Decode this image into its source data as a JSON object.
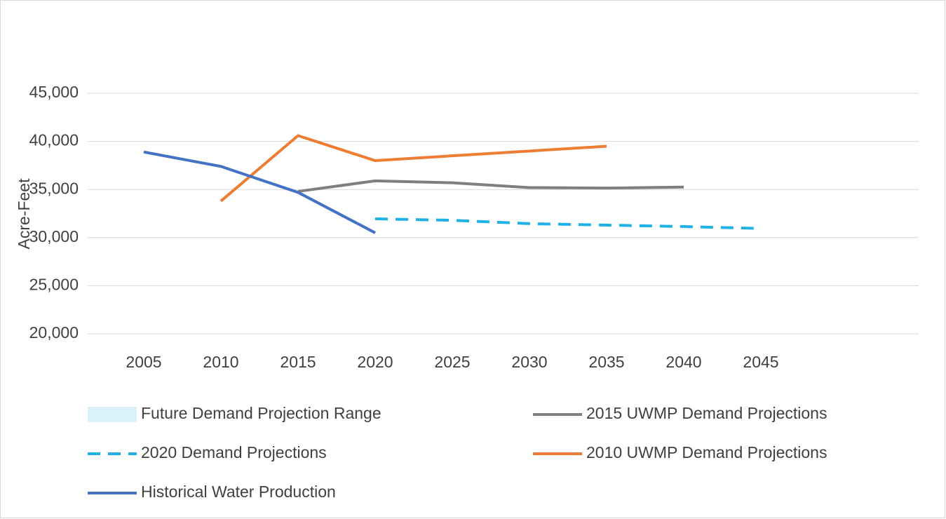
{
  "chart_data": {
    "type": "line",
    "y_label": "Acre-Feet",
    "categories": [
      "2005",
      "2010",
      "2015",
      "2020",
      "2025",
      "2030",
      "2035",
      "2040",
      "2045"
    ],
    "series": [
      {
        "name": "Future Demand Projection Range",
        "color": "#daf1fa",
        "style": "area",
        "values": [
          null,
          null,
          null,
          null,
          null,
          null,
          null,
          null,
          null
        ]
      },
      {
        "name": "2015 UWMP Demand Projections",
        "color": "#7f7f7f",
        "style": "solid",
        "values": [
          null,
          null,
          34800,
          35900,
          35700,
          35200,
          35150,
          35250,
          null
        ]
      },
      {
        "name": "2020 Demand Projections",
        "color": "#1fb1e6",
        "style": "dashed",
        "values": [
          null,
          null,
          null,
          31950,
          31800,
          31450,
          31300,
          31150,
          30950
        ]
      },
      {
        "name": "2010 UWMP Demand Projections",
        "color": "#ed7d31",
        "style": "solid",
        "values": [
          null,
          33800,
          40600,
          38000,
          38500,
          39000,
          39500,
          null,
          null
        ]
      },
      {
        "name": "Historical Water Production",
        "color": "#4472c4",
        "style": "solid",
        "values": [
          38900,
          37400,
          34700,
          30500,
          null,
          null,
          null,
          null,
          null
        ]
      }
    ],
    "ylim": [
      20000,
      45000
    ],
    "yticks": [
      {
        "value": 20000,
        "label": "20,000"
      },
      {
        "value": 25000,
        "label": "25,000"
      },
      {
        "value": 30000,
        "label": "30,000"
      },
      {
        "value": 35000,
        "label": "35,000"
      },
      {
        "value": 40000,
        "label": "40,000"
      },
      {
        "value": 45000,
        "label": "45,000"
      }
    ],
    "grid": true,
    "legend": "bottom"
  }
}
